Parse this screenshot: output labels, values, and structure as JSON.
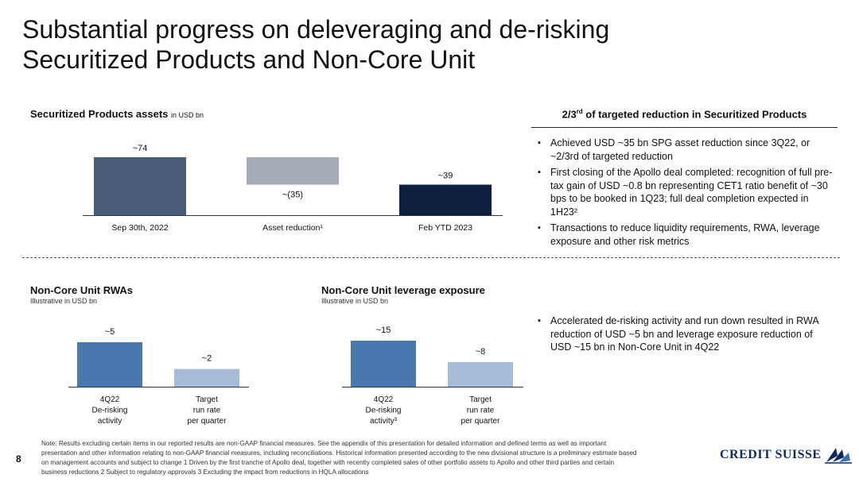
{
  "title": {
    "line1": "Substantial progress on deleveraging and de-risking",
    "line2": "Securitized Products and Non-Core Unit"
  },
  "sp_chart": {
    "header": "Securitized Products assets",
    "unit": "in USD bn"
  },
  "ncu_rwa": {
    "header": "Non-Core Unit RWAs",
    "sub": "Illustrative in USD bn"
  },
  "ncu_lev": {
    "header": "Non-Core Unit leverage exposure",
    "sub": "Illustrative in USD bn"
  },
  "right_top": {
    "header_pre": "2/3",
    "header_sup": "rd",
    "header_post": " of targeted reduction in Securitized Products",
    "bullets": [
      "Achieved USD ~35 bn SPG asset reduction since 3Q22, or ~2/3rd of targeted reduction",
      "First closing of the Apollo deal completed: recognition of full pre-tax gain of USD ~0.8 bn representing CET1 ratio benefit of ~30 bps to be booked in 1Q23; full deal completion expected in 1H23²",
      "Transactions to reduce liquidity requirements, RWA, leverage exposure and other risk metrics"
    ]
  },
  "right_bottom": {
    "bullets": [
      "Accelerated de-risking activity and run down resulted in RWA reduction of USD ~5 bn and leverage exposure reduction of USD ~15 bn in Non-Core Unit in 4Q22"
    ]
  },
  "footnote": {
    "line1": "Note: Results excluding certain items in our reported results are non-GAAP financial measures. See the appendix of this presentation for detailed information and defined terms as well as important",
    "line2": "presentation and other information relating to non-GAAP financial measures, including reconciliations. Historical information presented according to the new divisional structure is a preliminary estimate based",
    "line3": "on management accounts and subject to change     1 Driven by the first tranche of Apollo deal, together with recently completed sales of other portfolio assets to Apollo and other third parties and certain",
    "line4": "business reductions     2 Subject to regulatory approvals     3 Excluding the impact from reductions in HQLA allocations"
  },
  "page_number": "8",
  "logo": {
    "text": "CREDIT SUISSE"
  },
  "colors": {
    "slate": "#4a5d78",
    "grey": "#a3acb7",
    "navy": "#0f1f3f",
    "blue": "#4a77ad",
    "lightblue": "#a6bcd8"
  },
  "chart_data": [
    {
      "type": "bar",
      "waterfall": true,
      "categories": [
        "Sep 30th, 2022",
        "Asset reduction¹",
        "Feb YTD 2023"
      ],
      "values": [
        74,
        -35,
        39
      ],
      "data_labels": [
        "~74",
        "~(35)",
        "~39"
      ],
      "colors": [
        "#4a5d78",
        "#a3acb7",
        "#0f1f3f"
      ]
    },
    {
      "type": "bar",
      "categories": [
        [
          "4Q22",
          "De-risking",
          "activity"
        ],
        [
          "Target",
          "run rate",
          "per quarter"
        ]
      ],
      "values": [
        5,
        2
      ],
      "data_labels": [
        "~5",
        "~2"
      ],
      "colors": [
        "#4a77ad",
        "#a6bcd8"
      ]
    },
    {
      "type": "bar",
      "categories": [
        [
          "4Q22",
          "De-risking",
          "activity³"
        ],
        [
          "Target",
          "run rate",
          "per quarter"
        ]
      ],
      "values": [
        15,
        8
      ],
      "data_labels": [
        "~15",
        "~8"
      ],
      "colors": [
        "#4a77ad",
        "#a6bcd8"
      ]
    }
  ]
}
